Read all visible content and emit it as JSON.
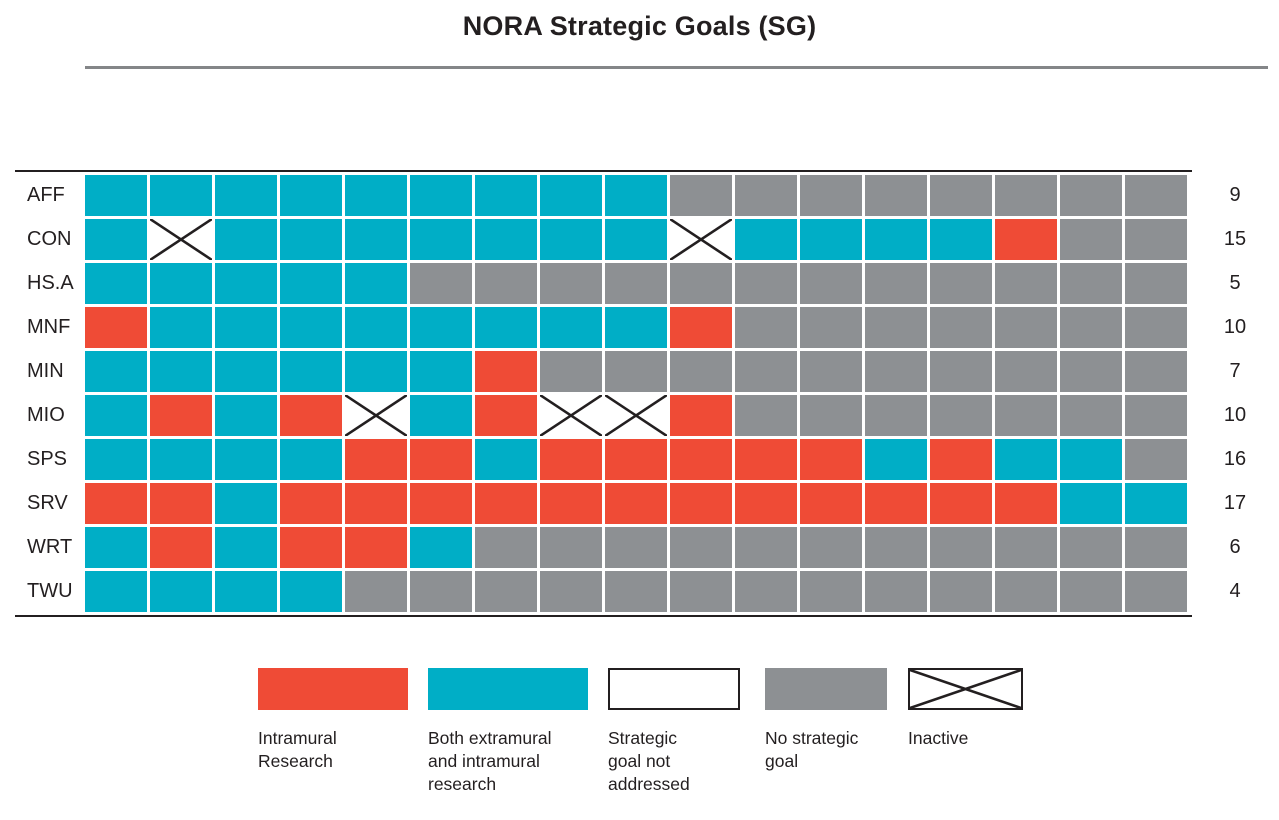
{
  "title": "NORA Strategic Goals (SG)",
  "colors": {
    "cell_red": "#EF4B36",
    "cell_teal": "#00AEC6",
    "cell_gray": "#8D9093",
    "line_dark": "#231F20",
    "divider_gray": "#848688"
  },
  "chart_data": {
    "type": "heatmap",
    "title": "NORA Strategic Goals (SG)",
    "columns": 17,
    "cell_codes": {
      "R": "Intramural Research",
      "B": "Both extramural and intramural research",
      "W": "Strategic goal not addressed",
      "G": "No strategic goal",
      "X": "Inactive"
    },
    "rows": [
      {
        "label": "AFF",
        "count": "9",
        "cells": [
          "B",
          "B",
          "B",
          "B",
          "B",
          "B",
          "B",
          "B",
          "B",
          "G",
          "G",
          "G",
          "G",
          "G",
          "G",
          "G",
          "G"
        ]
      },
      {
        "label": "CON",
        "count": "15",
        "cells": [
          "B",
          "X",
          "B",
          "B",
          "B",
          "B",
          "B",
          "B",
          "B",
          "X",
          "B",
          "B",
          "B",
          "B",
          "R",
          "G",
          "G"
        ]
      },
      {
        "label": "HS.A",
        "count": "5",
        "cells": [
          "B",
          "B",
          "B",
          "B",
          "B",
          "G",
          "G",
          "G",
          "G",
          "G",
          "G",
          "G",
          "G",
          "G",
          "G",
          "G",
          "G"
        ]
      },
      {
        "label": "MNF",
        "count": "10",
        "cells": [
          "R",
          "B",
          "B",
          "B",
          "B",
          "B",
          "B",
          "B",
          "B",
          "R",
          "G",
          "G",
          "G",
          "G",
          "G",
          "G",
          "G"
        ]
      },
      {
        "label": "MIN",
        "count": "7",
        "cells": [
          "B",
          "B",
          "B",
          "B",
          "B",
          "B",
          "R",
          "G",
          "G",
          "G",
          "G",
          "G",
          "G",
          "G",
          "G",
          "G",
          "G"
        ]
      },
      {
        "label": "MIO",
        "count": "10",
        "cells": [
          "B",
          "R",
          "B",
          "R",
          "X",
          "B",
          "R",
          "X",
          "X",
          "R",
          "G",
          "G",
          "G",
          "G",
          "G",
          "G",
          "G"
        ]
      },
      {
        "label": "SPS",
        "count": "16",
        "cells": [
          "B",
          "B",
          "B",
          "B",
          "R",
          "R",
          "B",
          "R",
          "R",
          "R",
          "R",
          "R",
          "B",
          "R",
          "B",
          "B",
          "G"
        ]
      },
      {
        "label": "SRV",
        "count": "17",
        "cells": [
          "R",
          "R",
          "B",
          "R",
          "R",
          "R",
          "R",
          "R",
          "R",
          "R",
          "R",
          "R",
          "R",
          "R",
          "R",
          "B",
          "B"
        ]
      },
      {
        "label": "WRT",
        "count": "6",
        "cells": [
          "B",
          "R",
          "B",
          "R",
          "R",
          "B",
          "G",
          "G",
          "G",
          "G",
          "G",
          "G",
          "G",
          "G",
          "G",
          "G",
          "G"
        ]
      },
      {
        "label": "TWU",
        "count": "4",
        "cells": [
          "B",
          "B",
          "B",
          "B",
          "G",
          "G",
          "G",
          "G",
          "G",
          "G",
          "G",
          "G",
          "G",
          "G",
          "G",
          "G",
          "G"
        ]
      }
    ]
  },
  "legend": [
    {
      "code": "R",
      "label": "Intramural Research"
    },
    {
      "code": "B",
      "label": "Both extramural and intramural research"
    },
    {
      "code": "W",
      "label": "Strategic goal not addressed"
    },
    {
      "code": "G",
      "label": "No strategic goal"
    },
    {
      "code": "X",
      "label": "Inactive"
    }
  ]
}
